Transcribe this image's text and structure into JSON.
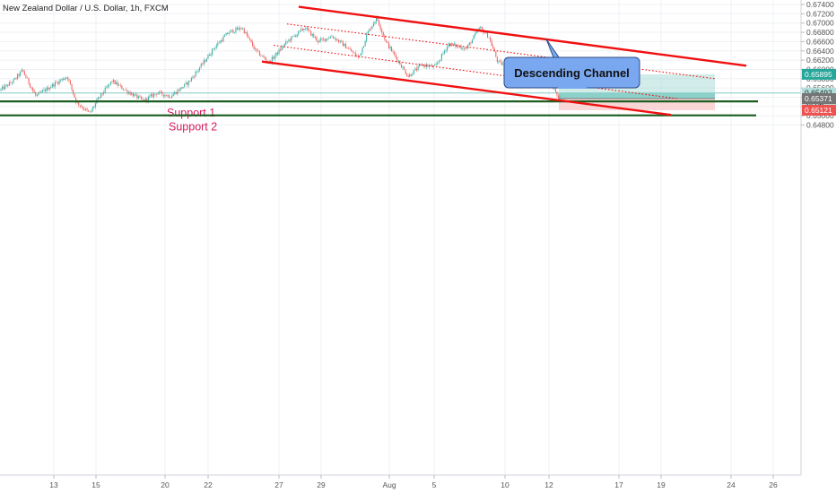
{
  "title": "New Zealand Dollar / U.S. Dollar, 1h, FXCM",
  "chart_data": {
    "type": "candlestick",
    "symbol": "NZDUSD",
    "timeframe": "1h",
    "source": "FXCM",
    "ylim": [
      0.6492,
      0.674
    ],
    "y_ticks": [
      "0.67400",
      "0.67200",
      "0.67000",
      "0.66800",
      "0.66600",
      "0.66400",
      "0.66200",
      "0.66000",
      "0.65800",
      "0.65600",
      "0.65400",
      "0.65200",
      "0.65000",
      "0.64800"
    ],
    "x_tick_labels": [
      "13",
      "15",
      "20",
      "22",
      "27",
      "29",
      "Aug",
      "5",
      "10",
      "12",
      "17",
      "19",
      "24",
      "26"
    ],
    "price_path": [
      [
        0,
        0.6555
      ],
      [
        15,
        0.6575
      ],
      [
        25,
        0.6598
      ],
      [
        40,
        0.6542
      ],
      [
        60,
        0.6568
      ],
      [
        75,
        0.6585
      ],
      [
        85,
        0.653
      ],
      [
        100,
        0.6505
      ],
      [
        110,
        0.6538
      ],
      [
        125,
        0.6575
      ],
      [
        140,
        0.6555
      ],
      [
        160,
        0.6532
      ],
      [
        175,
        0.655
      ],
      [
        190,
        0.6542
      ],
      [
        210,
        0.6572
      ],
      [
        225,
        0.661
      ],
      [
        240,
        0.665
      ],
      [
        255,
        0.668
      ],
      [
        270,
        0.669
      ],
      [
        285,
        0.664
      ],
      [
        300,
        0.6615
      ],
      [
        320,
        0.666
      ],
      [
        340,
        0.669
      ],
      [
        355,
        0.666
      ],
      [
        370,
        0.6672
      ],
      [
        385,
        0.665
      ],
      [
        400,
        0.6625
      ],
      [
        410,
        0.668
      ],
      [
        420,
        0.6712
      ],
      [
        430,
        0.666
      ],
      [
        440,
        0.663
      ],
      [
        455,
        0.6585
      ],
      [
        470,
        0.661
      ],
      [
        485,
        0.6605
      ],
      [
        500,
        0.6655
      ],
      [
        520,
        0.6645
      ],
      [
        535,
        0.669
      ],
      [
        545,
        0.667
      ],
      [
        555,
        0.6615
      ],
      [
        570,
        0.6605
      ],
      [
        580,
        0.6585
      ],
      [
        595,
        0.6625
      ],
      [
        605,
        0.659
      ],
      [
        615,
        0.657
      ],
      [
        620,
        0.6545
      ],
      [
        625,
        0.6535
      ]
    ],
    "channel": {
      "upper": [
        [
          333,
          0.6735
        ],
        [
          832,
          0.6608
        ]
      ],
      "lower": [
        [
          292,
          0.6617
        ],
        [
          748,
          0.6502
        ]
      ],
      "mid_upper": [
        [
          320,
          0.6698
        ],
        [
          797,
          0.658
        ]
      ],
      "mid_lower": [
        [
          305,
          0.6652
        ],
        [
          755,
          0.6537
        ]
      ]
    },
    "supports": [
      {
        "label": "Support 1",
        "price": 0.6531
      },
      {
        "label": "Support 2",
        "price": 0.6501
      }
    ],
    "position": {
      "x_start": 623,
      "x_end": 797,
      "target": 0.65895,
      "entry": 0.65371,
      "stop": 0.65121
    },
    "current_price": 0.65492,
    "price_labels": [
      {
        "text": "0.65895",
        "value": 0.65895,
        "color": "#26a69a"
      },
      {
        "text": "0.65492",
        "value": 0.65492,
        "color": "#b2dfdb"
      },
      {
        "text": "24:06",
        "value": 0.65431,
        "color": "#b2dfdb"
      },
      {
        "text": "0.65371",
        "value": 0.65371,
        "color": "#757575"
      },
      {
        "text": "0.65121",
        "value": 0.65121,
        "color": "#ef5350"
      }
    ],
    "annotations": [
      {
        "text": "Descending Channel",
        "anchor_price": 0.66654
      }
    ]
  },
  "colors": {
    "up": "#26a69a",
    "down": "#ef5350",
    "channel": "#f01010",
    "support": "#1b5e20",
    "support_text": "#d81b60",
    "profit_zone": "#b2dfdb",
    "loss_zone": "#f8c8c8",
    "annotation_fill": "#7aa8f0",
    "grid": "#eef0f4",
    "axis_text": "#555555"
  }
}
